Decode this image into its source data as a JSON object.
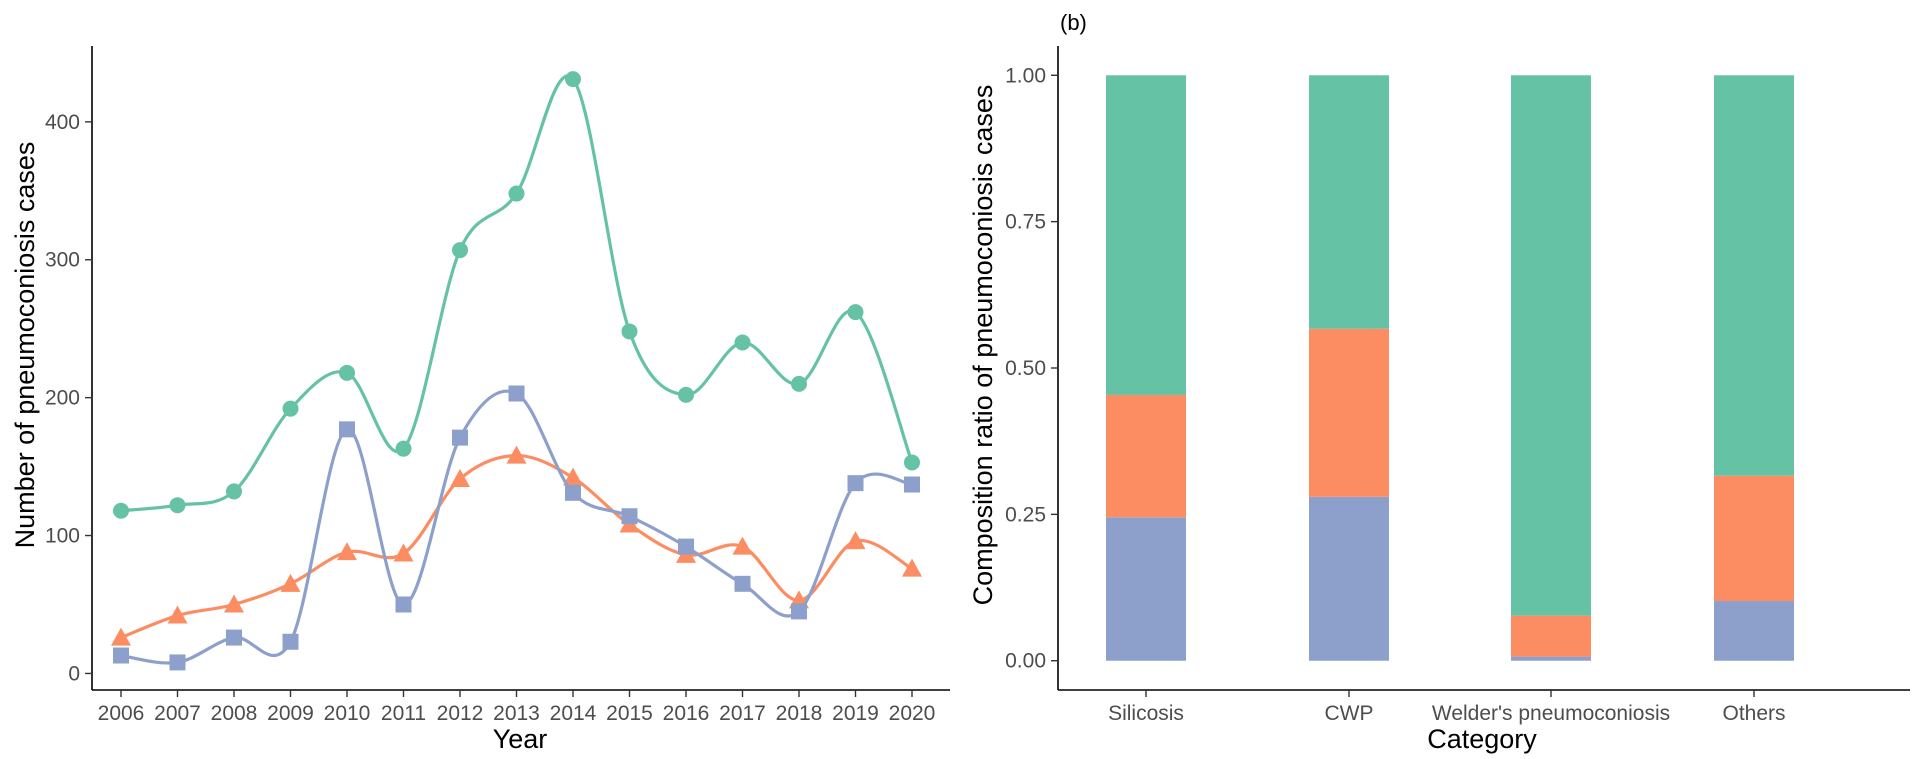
{
  "chart_data": [
    {
      "type": "line",
      "panel_label": "",
      "title": "",
      "xlabel": "Year",
      "ylabel": "Number of pneumoconiosis cases",
      "x": [
        2006,
        2007,
        2008,
        2009,
        2010,
        2011,
        2012,
        2013,
        2014,
        2015,
        2016,
        2017,
        2018,
        2019,
        2020
      ],
      "x_tick_labels": [
        "2006",
        "2007",
        "2008",
        "2009",
        "2010",
        "2011",
        "2012",
        "2013",
        "2014",
        "2015",
        "2016",
        "2017",
        "2018",
        "2019",
        "2020"
      ],
      "ylim": [
        -12,
        455
      ],
      "y_ticks": [
        0,
        100,
        200,
        300,
        400
      ],
      "y_tick_labels": [
        "0",
        "100",
        "200",
        "300",
        "400"
      ],
      "grid": false,
      "series": [
        {
          "name": "series-green",
          "color": "#66c2a5",
          "marker": "circle",
          "values": [
            118,
            122,
            132,
            192,
            218,
            163,
            307,
            348,
            431,
            248,
            202,
            240,
            210,
            262,
            153
          ]
        },
        {
          "name": "series-orange",
          "color": "#fc8d62",
          "marker": "triangle",
          "values": [
            26,
            42,
            50,
            65,
            88,
            87,
            141,
            158,
            142,
            108,
            86,
            92,
            53,
            96,
            76
          ]
        },
        {
          "name": "series-blue",
          "color": "#8da0cb",
          "marker": "square",
          "values": [
            13,
            8,
            26,
            23,
            177,
            50,
            171,
            203,
            131,
            114,
            92,
            65,
            45,
            138,
            137
          ]
        }
      ]
    },
    {
      "type": "bar",
      "stacked": true,
      "panel_label": "(b)",
      "title": "",
      "xlabel": "Category",
      "ylabel": "Composition ratio of pneumoconiosis cases",
      "categories": [
        "Silicosis",
        "CWP",
        "Welder's pneumoconiosis",
        "Others"
      ],
      "ylim": [
        -0.05,
        1.05
      ],
      "y_ticks": [
        0,
        0.25,
        0.5,
        0.75,
        1.0
      ],
      "y_tick_labels": [
        "0.00",
        "0.25",
        "0.50",
        "0.75",
        "1.00"
      ],
      "grid": false,
      "series": [
        {
          "name": "segment-blue",
          "color": "#8da0cb",
          "values": [
            0.245,
            0.28,
            0.007,
            0.102
          ]
        },
        {
          "name": "segment-orange",
          "color": "#fc8d62",
          "values": [
            0.209,
            0.287,
            0.07,
            0.214
          ]
        },
        {
          "name": "segment-green",
          "color": "#66c2a5",
          "values": [
            0.546,
            0.433,
            0.923,
            0.684
          ]
        }
      ]
    }
  ]
}
